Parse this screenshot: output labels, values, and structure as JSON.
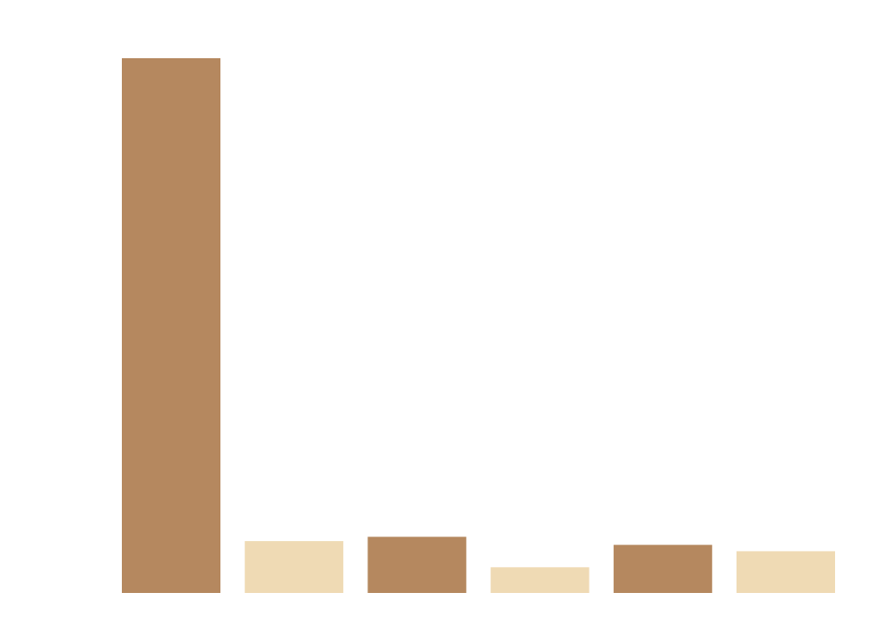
{
  "chart_data": {
    "type": "bar",
    "title": "",
    "xlabel": "",
    "ylabel": "",
    "categories": [
      "",
      "",
      "",
      "",
      "",
      ""
    ],
    "values": [
      100,
      9.7,
      10.5,
      4.8,
      9.0,
      7.8
    ],
    "ylim": [
      0,
      100
    ],
    "grid": false,
    "bar_colors": [
      "#B5885F",
      "#EFDAB4",
      "#B5885F",
      "#EFDAB4",
      "#B5885F",
      "#EFDAB4"
    ]
  }
}
